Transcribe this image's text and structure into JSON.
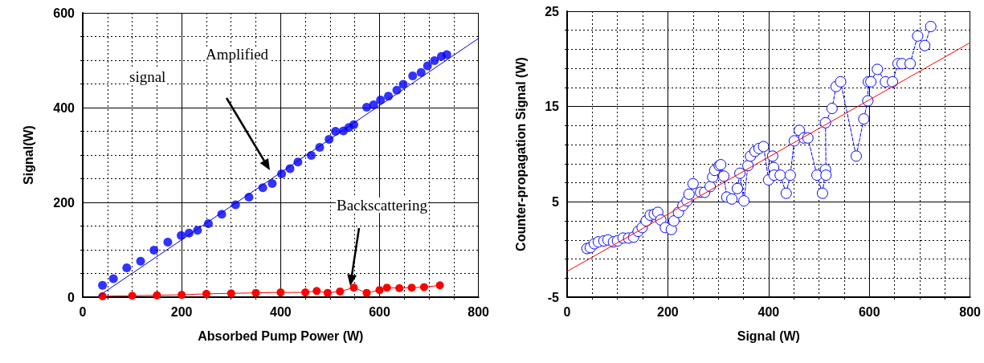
{
  "chart_data": [
    {
      "type": "scatter",
      "xlabel": "Absorbed Pump Power (W)",
      "ylabel": "Signal(W)",
      "xlim": [
        0,
        800
      ],
      "xticks": [
        0,
        200,
        400,
        600,
        800
      ],
      "ylim": [
        0,
        600
      ],
      "yticks": [
        0,
        200,
        400,
        600
      ],
      "grid": true,
      "annotations": [
        "Amplified",
        "signal",
        "Backscattering"
      ],
      "series": [
        {
          "color": "#0000ff",
          "marker": "circle",
          "x": [
            40,
            62,
            89,
            117,
            144,
            172,
            199,
            215,
            232,
            254,
            281,
            309,
            336,
            364,
            383,
            402,
            419,
            435,
            462,
            479,
            498,
            511,
            527,
            538,
            548,
            574,
            588,
            602,
            618,
            635,
            648,
            667,
            684,
            697,
            711,
            725,
            736
          ],
          "values": [
            25,
            39,
            62,
            76,
            99,
            116,
            130,
            135,
            141,
            155,
            175,
            195,
            211,
            231,
            240,
            260,
            271,
            285,
            299,
            316,
            333,
            350,
            351,
            358,
            364,
            401,
            406,
            416,
            424,
            437,
            449,
            467,
            474,
            488,
            499,
            508,
            512
          ]
        },
        {
          "type": "line",
          "color": "#ff0000",
          "marker": "circle",
          "line_style": "solid",
          "x": [
            40,
            100,
            150,
            200,
            250,
            300,
            350,
            400,
            450,
            473,
            495,
            520,
            548,
            574,
            600,
            615,
            640,
            665,
            690,
            722
          ],
          "values": [
            2,
            3,
            4,
            5,
            7,
            8,
            9,
            10,
            10,
            13,
            9,
            12,
            20,
            9,
            15,
            20,
            19,
            20,
            21,
            25
          ]
        },
        {
          "type": "line",
          "color": "#0000cc",
          "marker": "none",
          "line_style": "solid",
          "x": [
            29,
            800
          ],
          "values": [
            0,
            546
          ]
        }
      ]
    },
    {
      "type": "line",
      "xlabel": "Signal (W)",
      "ylabel": "Counter-propagation Signal (W)",
      "xlim": [
        0,
        800
      ],
      "xticks": [
        0,
        200,
        400,
        600,
        800
      ],
      "ylim": [
        -5,
        25
      ],
      "yticks": [
        -5,
        5,
        15,
        25
      ],
      "grid": true,
      "series": [
        {
          "color": "#0000ff",
          "marker": "circle",
          "line_style": "dashed",
          "x": [
            39.5,
            46,
            54,
            62,
            73,
            81,
            92,
            100,
            111,
            122,
            132,
            141,
            149,
            157,
            165,
            173,
            180,
            186,
            195,
            207,
            212,
            221,
            230,
            238,
            242,
            250,
            265,
            273,
            284,
            289,
            293,
            302,
            305,
            311,
            317,
            327,
            338,
            343,
            351,
            359,
            364,
            373,
            381,
            390,
            400,
            408,
            410,
            411,
            423,
            435,
            443,
            451,
            461,
            470,
            478,
            496,
            507,
            513,
            514,
            513,
            526,
            534,
            543,
            574,
            589,
            597,
            598,
            603,
            616,
            632,
            646,
            657,
            665,
            681,
            696,
            710,
            722
          ],
          "values": [
            0.1,
            0.2,
            0.6,
            0.8,
            0.9,
            1.0,
            0.8,
            0.9,
            1.2,
            1.2,
            1.3,
            1.9,
            2.3,
            3.0,
            3.6,
            3.7,
            3.9,
            3.1,
            2.3,
            2.1,
            3.0,
            3.9,
            4.6,
            5.1,
            5.8,
            6.9,
            6.0,
            6.0,
            6.6,
            7.6,
            8.3,
            8.8,
            8.9,
            7.7,
            5.5,
            5.3,
            6.4,
            8.0,
            5.1,
            8.8,
            9.8,
            10.3,
            10.6,
            10.8,
            7.3,
            9.8,
            8.6,
            7.8,
            7.8,
            5.9,
            7.8,
            11.4,
            12.5,
            11.7,
            11.7,
            7.8,
            5.9,
            8.4,
            7.8,
            13.3,
            14.8,
            17.1,
            17.6,
            9.8,
            13.7,
            15.6,
            17.6,
            17.6,
            18.9,
            17.6,
            17.6,
            19.5,
            19.5,
            19.5,
            22.4,
            21.4,
            23.4
          ]
        },
        {
          "color": "#ff0000",
          "marker": "none",
          "line_style": "solid",
          "x": [
            0,
            800
          ],
          "values": [
            -2.3,
            21.7
          ]
        }
      ]
    }
  ]
}
